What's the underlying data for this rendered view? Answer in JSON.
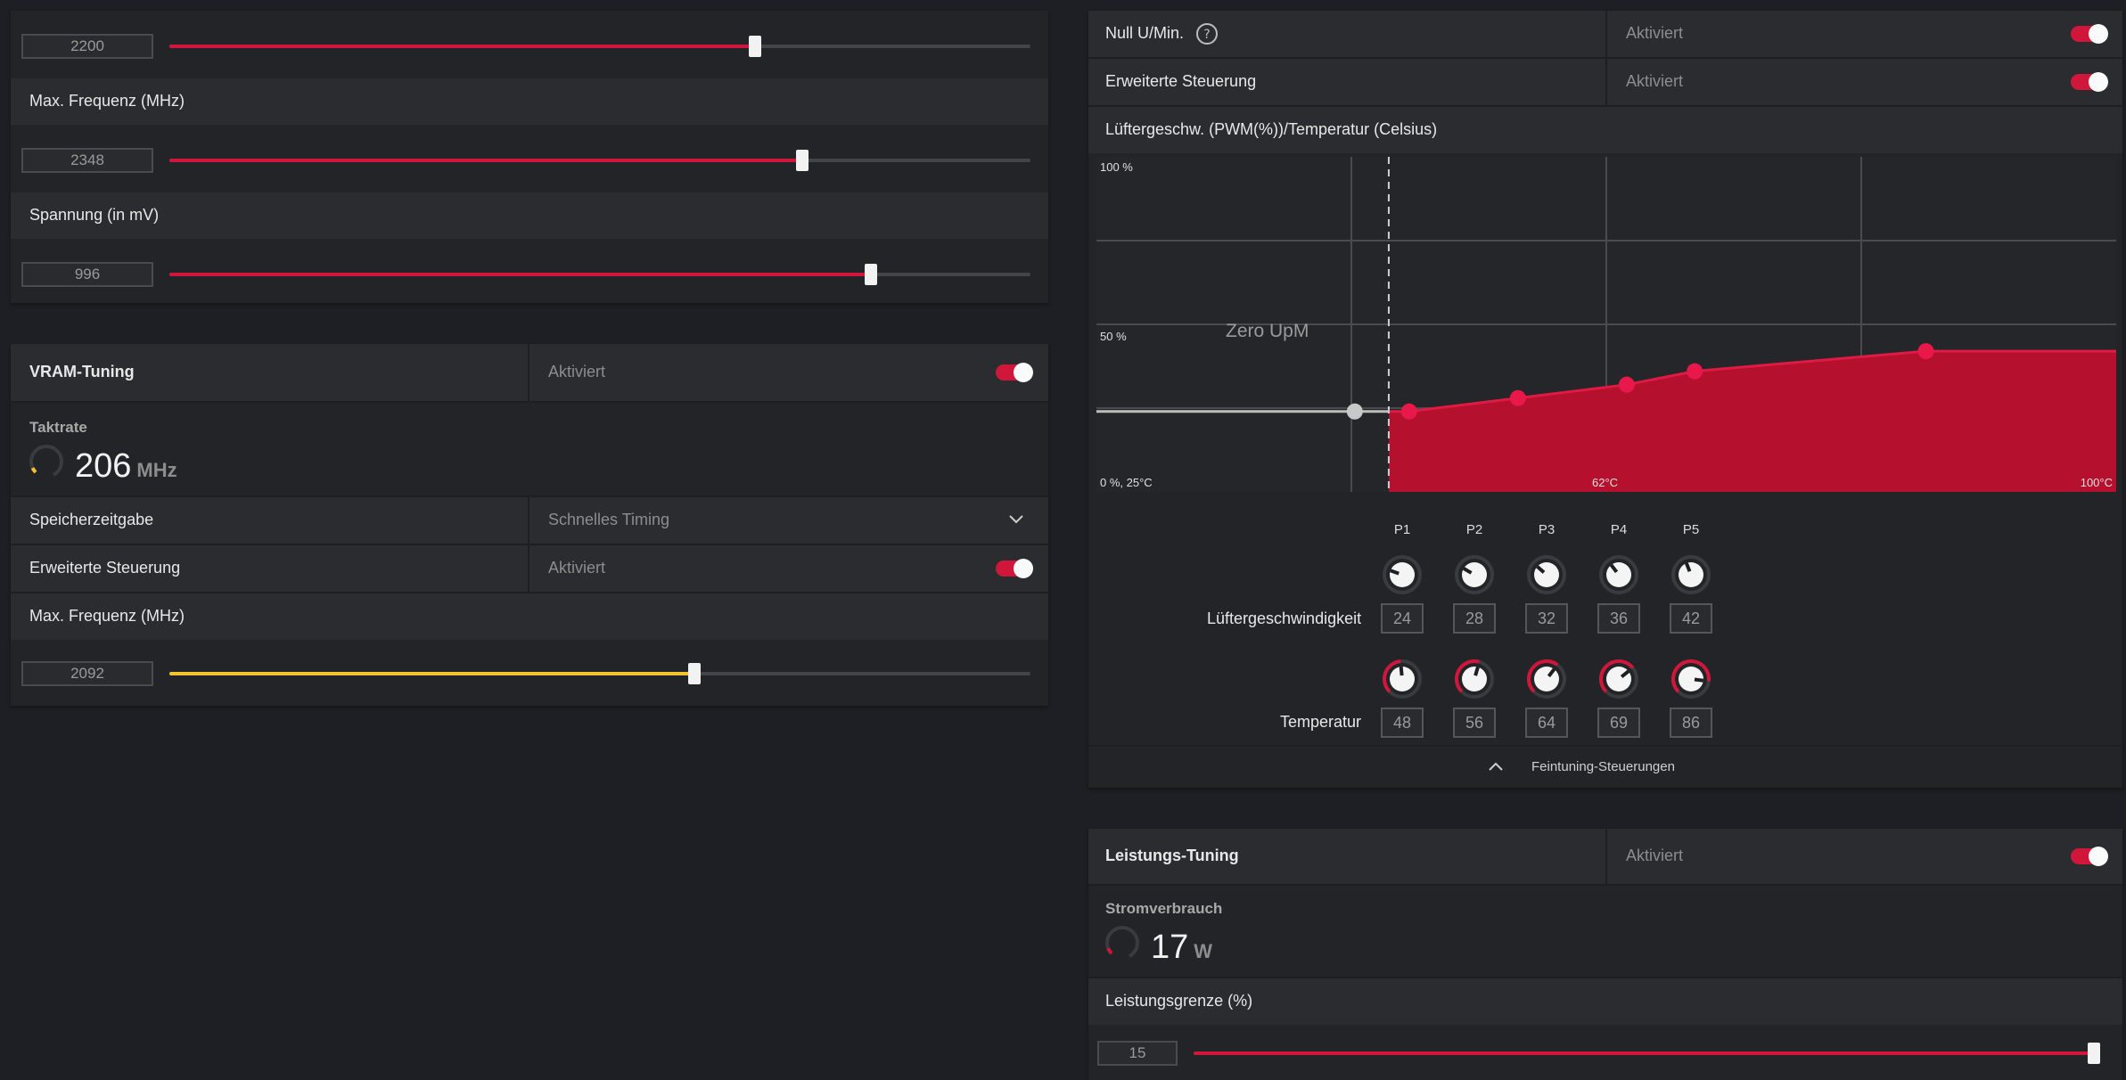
{
  "left": {
    "gpu_rows": {
      "slider1": {
        "value": "2200",
        "fraction": 0.68
      },
      "max_freq_label": "Max. Frequenz (MHz)",
      "slider2": {
        "value": "2348",
        "fraction": 0.735
      },
      "voltage_label": "Spannung (in mV)",
      "slider3": {
        "value": "996",
        "fraction": 0.815
      }
    },
    "vram": {
      "title": "VRAM-Tuning",
      "status": "Aktiviert",
      "clock_label": "Taktrate",
      "clock_value": "206",
      "clock_unit": "MHz",
      "memory_timing_label": "Speicherzeitgabe",
      "memory_timing_value": "Schnelles Timing",
      "advanced_label": "Erweiterte Steuerung",
      "advanced_status": "Aktiviert",
      "max_freq_label": "Max. Frequenz (MHz)",
      "slider": {
        "value": "2092",
        "fraction": 0.61
      }
    }
  },
  "right": {
    "zero_rpm_label": "Null U/Min.",
    "zero_rpm_status": "Aktiviert",
    "advanced_label": "Erweiterte Steuerung",
    "advanced_status": "Aktiviert",
    "fan_curve_title": "Lüftergeschw. (PWM(%))/Temperatur (Celsius)",
    "fan_chart": {
      "y_top_label": "100 %",
      "y_mid_label": "50 %",
      "origin_label": "0 %, 25°C",
      "x_mid_label": "62°C",
      "x_max_label": "100°C",
      "zero_upm_label": "Zero UpM",
      "zero_point": {
        "temp": 44,
        "speed": 24
      },
      "points": [
        {
          "temp": 48,
          "speed": 24
        },
        {
          "temp": 56,
          "speed": 28
        },
        {
          "temp": 64,
          "speed": 32
        },
        {
          "temp": 69,
          "speed": 36
        },
        {
          "temp": 86,
          "speed": 42
        }
      ]
    },
    "points_header": [
      "P1",
      "P2",
      "P3",
      "P4",
      "P5"
    ],
    "fan_speed_label": "Lüftergeschwindigkeit",
    "fan_speeds": [
      "24",
      "28",
      "32",
      "36",
      "42"
    ],
    "temperature_label": "Temperatur",
    "temperatures": [
      "48",
      "56",
      "64",
      "69",
      "86"
    ],
    "finetune_label": "Feintuning-Steuerungen",
    "power": {
      "title": "Leistungs-Tuning",
      "status": "Aktiviert",
      "consumption_label": "Stromverbrauch",
      "consumption_value": "17",
      "consumption_unit": "W",
      "limit_label": "Leistungsgrenze (%)",
      "slider": {
        "value": "15",
        "fraction": 1.0
      }
    }
  },
  "colors": {
    "accent": "#d0173b",
    "yellow": "#f2c230",
    "bg": "#1d1f24",
    "panel": "#232427"
  }
}
